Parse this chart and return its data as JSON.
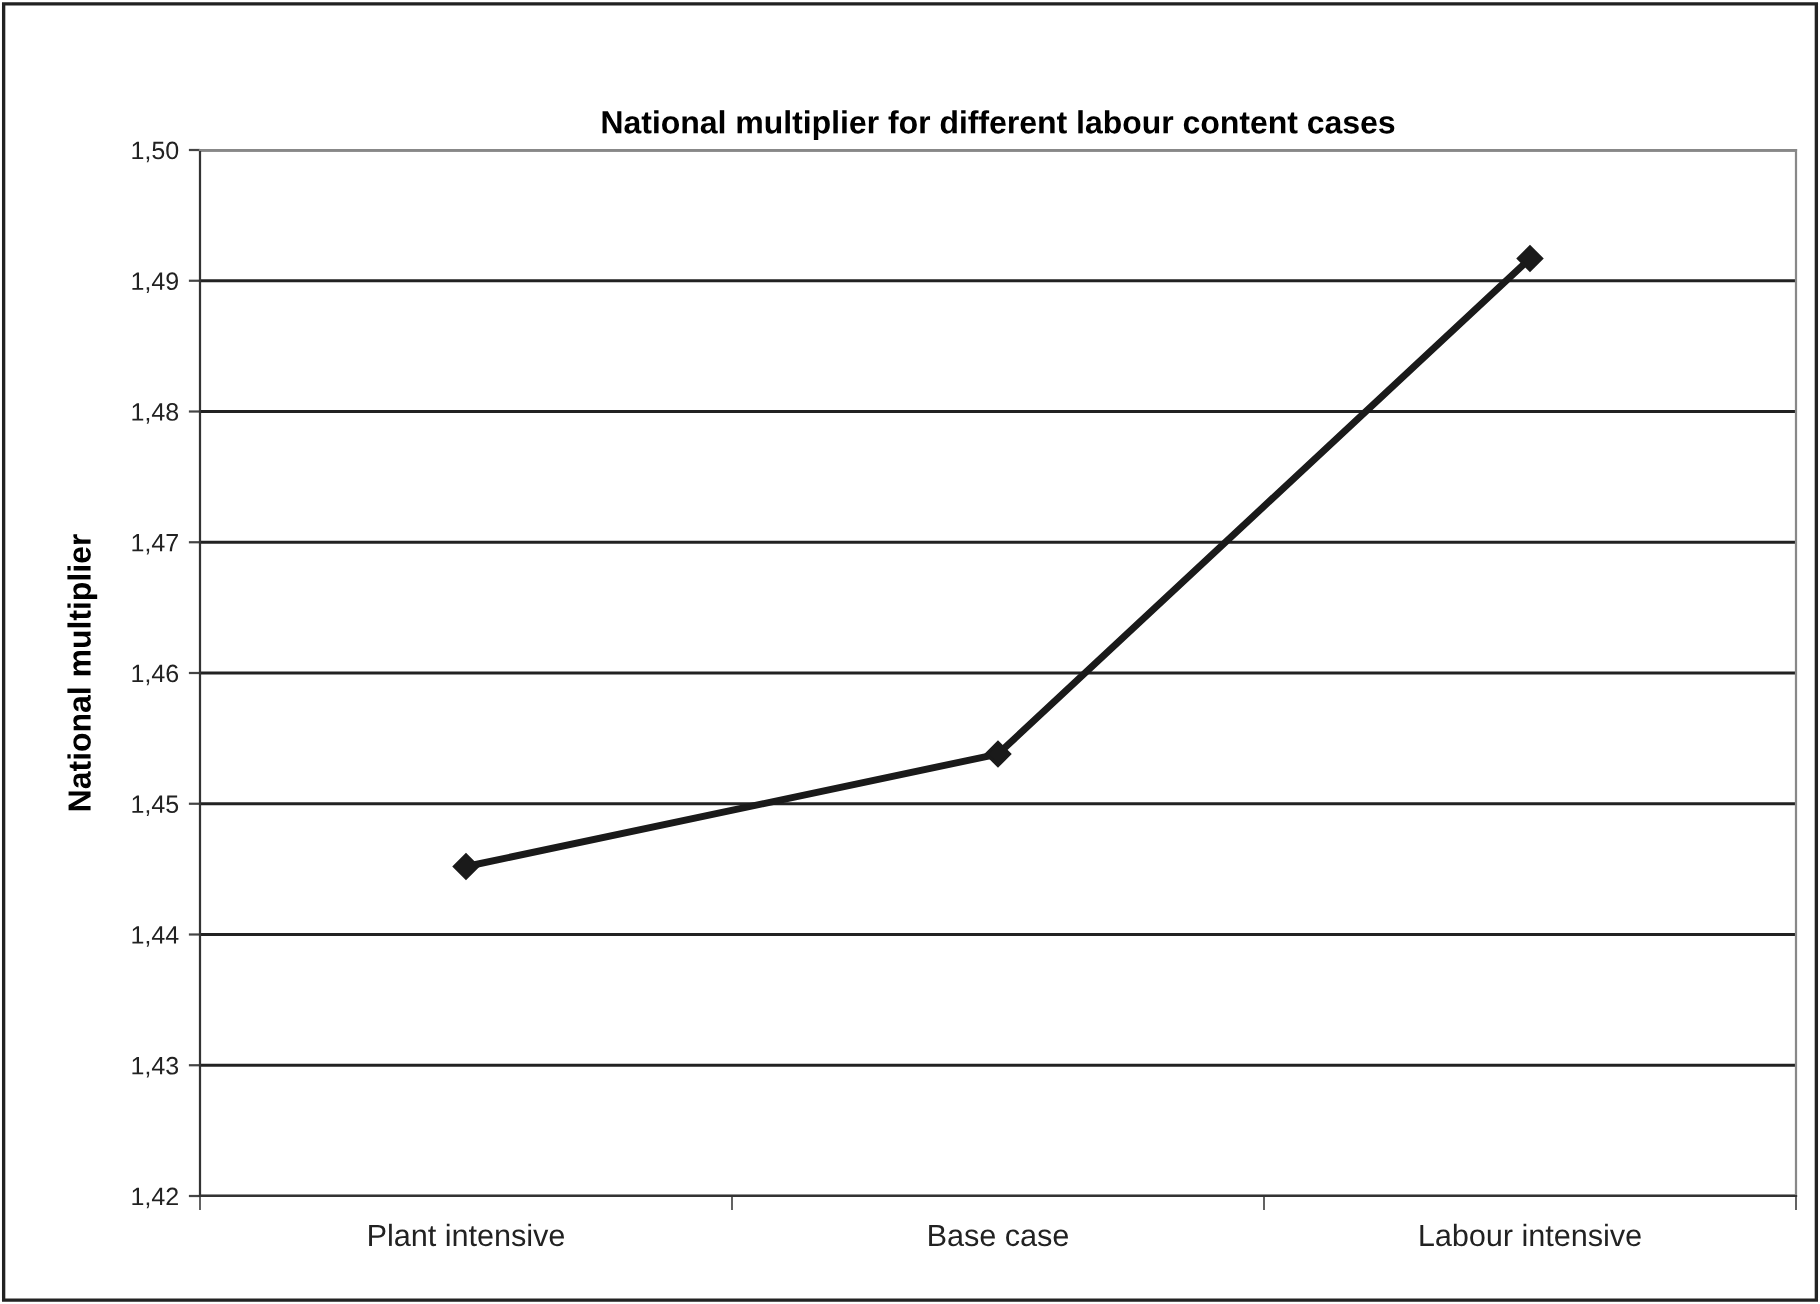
{
  "chart_data": {
    "type": "line",
    "title": "National multiplier for different labour content cases",
    "ylabel": "National multiplier",
    "categories": [
      "Plant intensive",
      "Base case",
      "Labour intensive"
    ],
    "series": [
      {
        "color": "#1a1a1a",
        "values": [
          1.4452,
          1.4538,
          1.4917
        ]
      }
    ],
    "ylim": [
      1.42,
      1.5
    ],
    "yticks": [
      {
        "value": 1.42,
        "label": "1,42"
      },
      {
        "value": 1.43,
        "label": "1,43"
      },
      {
        "value": 1.44,
        "label": "1,44"
      },
      {
        "value": 1.45,
        "label": "1,45"
      },
      {
        "value": 1.46,
        "label": "1,46"
      },
      {
        "value": 1.47,
        "label": "1,47"
      },
      {
        "value": 1.48,
        "label": "1,48"
      },
      {
        "value": 1.49,
        "label": "1,49"
      },
      {
        "value": 1.5,
        "label": "1,50"
      }
    ],
    "grid": "y",
    "marker": "diamond",
    "line_style": "solid",
    "legend": false
  }
}
